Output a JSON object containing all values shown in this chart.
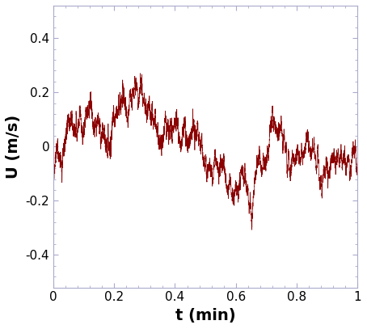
{
  "title": "",
  "xlabel": "t (min)",
  "ylabel": "U (m/s)",
  "xlim": [
    0,
    1.0
  ],
  "ylim": [
    -0.52,
    0.52
  ],
  "yticks": [
    -0.4,
    -0.2,
    0,
    0.2,
    0.4
  ],
  "xticks": [
    0,
    0.2,
    0.4,
    0.6,
    0.8,
    1.0
  ],
  "line_color": "#8B0000",
  "line_width": 0.5,
  "bg_color": "#ffffff",
  "spine_color": "#aaaacc",
  "n_points": 6000,
  "seed": 7,
  "xlabel_fontsize": 14,
  "ylabel_fontsize": 14,
  "tick_fontsize": 11
}
